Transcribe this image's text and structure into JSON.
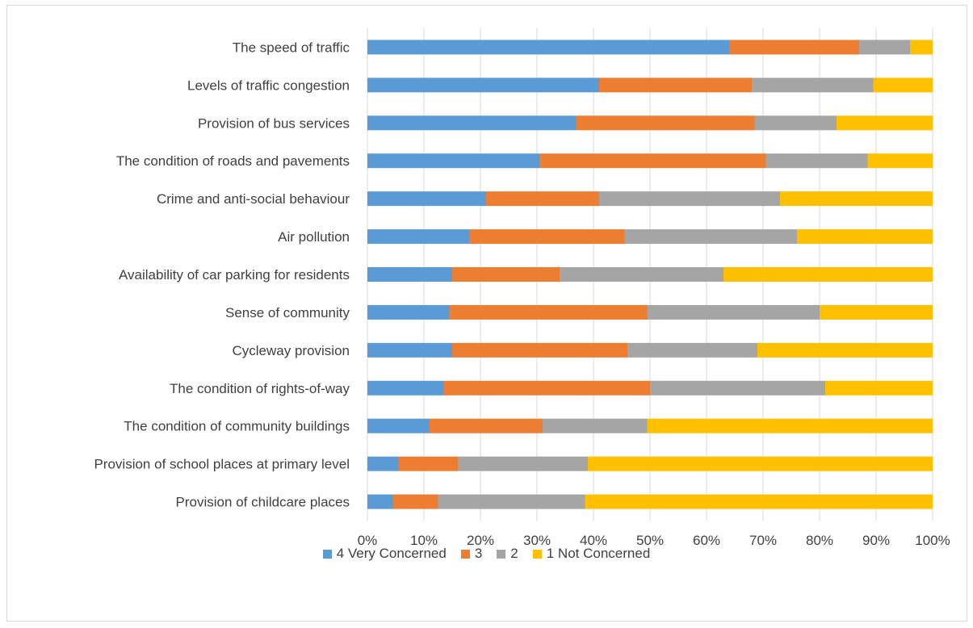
{
  "chart_data": {
    "type": "bar",
    "orientation": "horizontal",
    "stacked": "percent",
    "title": "",
    "xlabel": "",
    "ylabel": "",
    "xlim": [
      0,
      100
    ],
    "x_ticks": [
      "0%",
      "10%",
      "20%",
      "30%",
      "40%",
      "50%",
      "60%",
      "70%",
      "80%",
      "90%",
      "100%"
    ],
    "grid": true,
    "legend_position": "bottom",
    "categories": [
      "The speed of traffic",
      "Levels of traffic congestion",
      "Provision of bus services",
      "The condition of roads and pavements",
      "Crime and anti-social behaviour",
      "Air pollution",
      "Availability of car parking for residents",
      "Sense of community",
      "Cycleway provision",
      "The condition of rights-of-way",
      "The condition of community buildings",
      "Provision of school places at primary level",
      "Provision of childcare places"
    ],
    "series": [
      {
        "name": "4 Very Concerned",
        "color": "#5b9bd5",
        "values": [
          64,
          41,
          37,
          30.5,
          21,
          18,
          15,
          14.5,
          15,
          13.5,
          11,
          5.5,
          4.5
        ]
      },
      {
        "name": "3",
        "color": "#ed7d31",
        "values": [
          23,
          27,
          31.5,
          40,
          20,
          27.5,
          19,
          35,
          31,
          36.5,
          20,
          10.5,
          8
        ]
      },
      {
        "name": "2",
        "color": "#a5a5a5",
        "values": [
          9,
          21.5,
          14.5,
          18,
          32,
          30.5,
          29,
          30.5,
          23,
          31,
          18.5,
          23,
          26
        ]
      },
      {
        "name": "1 Not Concerned",
        "color": "#ffc000",
        "values": [
          4,
          10.5,
          17,
          11.5,
          27,
          24,
          37,
          20,
          31,
          19,
          50.5,
          61,
          61.5
        ]
      }
    ]
  }
}
